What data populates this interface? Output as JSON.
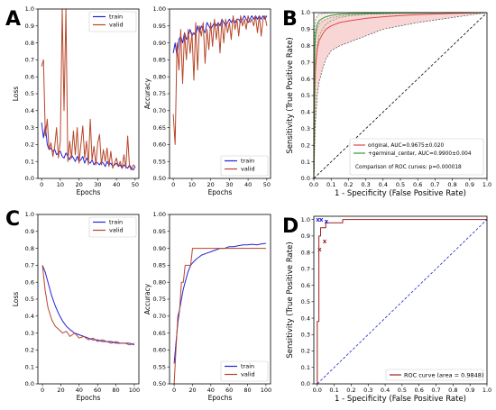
{
  "colors": {
    "train": "#2424d8",
    "valid": "#b8462a",
    "original": "#e04646",
    "germinal": "#2e9a2e",
    "band": "#f7c8c8",
    "diag": "#000000",
    "roc": "#9a2020",
    "diag_blue": "#2222cc"
  },
  "chart_data": [
    {
      "id": "A-loss",
      "panel": "A",
      "type": "line",
      "xlabel": "Epochs",
      "ylabel": "Loss",
      "xlim": [
        -2,
        52
      ],
      "ylim": [
        0,
        1.0
      ],
      "xticks": [
        0,
        10,
        20,
        30,
        40,
        50
      ],
      "yticks": [
        0.0,
        0.1,
        0.2,
        0.3,
        0.4,
        0.5,
        0.6,
        0.7,
        0.8,
        0.9,
        1.0
      ],
      "legend": "top-right",
      "series": [
        {
          "name": "train",
          "color": "train",
          "x": [
            0,
            1,
            2,
            3,
            4,
            5,
            6,
            7,
            8,
            9,
            10,
            11,
            12,
            13,
            14,
            15,
            16,
            17,
            18,
            19,
            20,
            21,
            22,
            23,
            24,
            25,
            26,
            27,
            28,
            29,
            30,
            31,
            32,
            33,
            34,
            35,
            36,
            37,
            38,
            39,
            40,
            41,
            42,
            43,
            44,
            45,
            46,
            47,
            48,
            49,
            50
          ],
          "y": [
            0.33,
            0.24,
            0.31,
            0.2,
            0.17,
            0.18,
            0.16,
            0.17,
            0.14,
            0.15,
            0.16,
            0.13,
            0.12,
            0.15,
            0.13,
            0.11,
            0.14,
            0.12,
            0.1,
            0.13,
            0.1,
            0.11,
            0.13,
            0.09,
            0.12,
            0.1,
            0.09,
            0.11,
            0.08,
            0.1,
            0.09,
            0.08,
            0.1,
            0.09,
            0.07,
            0.1,
            0.08,
            0.09,
            0.07,
            0.08,
            0.09,
            0.07,
            0.08,
            0.06,
            0.08,
            0.07,
            0.06,
            0.08,
            0.06,
            0.05,
            0.07
          ]
        },
        {
          "name": "valid",
          "color": "valid",
          "x": [
            0,
            1,
            2,
            3,
            4,
            5,
            6,
            7,
            8,
            9,
            10,
            11,
            12,
            13,
            14,
            15,
            16,
            17,
            18,
            19,
            20,
            21,
            22,
            23,
            24,
            25,
            26,
            27,
            28,
            29,
            30,
            31,
            32,
            33,
            34,
            35,
            36,
            37,
            38,
            39,
            40,
            41,
            42,
            43,
            44,
            45,
            46,
            47,
            48,
            49,
            50
          ],
          "y": [
            0.66,
            0.7,
            0.25,
            0.35,
            0.17,
            0.21,
            0.13,
            0.19,
            0.3,
            0.12,
            0.22,
            1.0,
            0.4,
            1.0,
            0.1,
            0.22,
            0.12,
            0.28,
            0.14,
            0.3,
            0.09,
            0.2,
            0.31,
            0.12,
            0.22,
            0.08,
            0.35,
            0.11,
            0.19,
            0.08,
            0.21,
            0.26,
            0.08,
            0.17,
            0.1,
            0.18,
            0.07,
            0.16,
            0.06,
            0.09,
            0.12,
            0.07,
            0.1,
            0.06,
            0.14,
            0.06,
            0.25,
            0.07,
            0.05,
            0.08,
            0.07
          ]
        }
      ]
    },
    {
      "id": "A-acc",
      "panel": "A",
      "type": "line",
      "xlabel": "Epochs",
      "ylabel": "Accuracy",
      "xlim": [
        -2,
        52
      ],
      "ylim": [
        0.5,
        1.0
      ],
      "xticks": [
        0,
        10,
        20,
        30,
        40,
        50
      ],
      "yticks": [
        0.5,
        0.55,
        0.6,
        0.65,
        0.7,
        0.75,
        0.8,
        0.85,
        0.9,
        0.95,
        1.0
      ],
      "legend": "bottom-right",
      "series": [
        {
          "name": "train",
          "color": "train",
          "x": [
            0,
            1,
            2,
            3,
            4,
            5,
            6,
            7,
            8,
            9,
            10,
            11,
            12,
            13,
            14,
            15,
            16,
            17,
            18,
            19,
            20,
            21,
            22,
            23,
            24,
            25,
            26,
            27,
            28,
            29,
            30,
            31,
            32,
            33,
            34,
            35,
            36,
            37,
            38,
            39,
            40,
            41,
            42,
            43,
            44,
            45,
            46,
            47,
            48,
            49,
            50
          ],
          "y": [
            0.87,
            0.9,
            0.86,
            0.91,
            0.92,
            0.9,
            0.93,
            0.91,
            0.92,
            0.94,
            0.92,
            0.93,
            0.92,
            0.95,
            0.93,
            0.95,
            0.94,
            0.93,
            0.96,
            0.95,
            0.94,
            0.95,
            0.96,
            0.95,
            0.96,
            0.95,
            0.97,
            0.96,
            0.95,
            0.96,
            0.97,
            0.96,
            0.97,
            0.96,
            0.97,
            0.97,
            0.96,
            0.97,
            0.98,
            0.97,
            0.96,
            0.97,
            0.98,
            0.97,
            0.98,
            0.97,
            0.98,
            0.97,
            0.98,
            0.97,
            0.98
          ]
        },
        {
          "name": "valid",
          "color": "valid",
          "x": [
            0,
            1,
            2,
            3,
            4,
            5,
            6,
            7,
            8,
            9,
            10,
            11,
            12,
            13,
            14,
            15,
            16,
            17,
            18,
            19,
            20,
            21,
            22,
            23,
            24,
            25,
            26,
            27,
            28,
            29,
            30,
            31,
            32,
            33,
            34,
            35,
            36,
            37,
            38,
            39,
            40,
            41,
            42,
            43,
            44,
            45,
            46,
            47,
            48,
            49,
            50
          ],
          "y": [
            0.69,
            0.6,
            0.9,
            0.82,
            0.94,
            0.78,
            0.93,
            0.85,
            0.94,
            0.87,
            0.93,
            0.79,
            0.96,
            0.82,
            0.95,
            0.92,
            0.96,
            0.84,
            0.94,
            0.88,
            0.96,
            0.89,
            0.97,
            0.91,
            0.96,
            0.87,
            0.97,
            0.9,
            0.97,
            0.93,
            0.96,
            0.91,
            0.98,
            0.94,
            0.97,
            0.92,
            0.98,
            0.95,
            0.97,
            0.94,
            0.98,
            0.96,
            0.97,
            0.95,
            0.98,
            0.93,
            0.98,
            0.92,
            0.97,
            0.98,
            0.95
          ]
        }
      ]
    },
    {
      "id": "B-roc",
      "panel": "B",
      "type": "line",
      "xlabel": "1 - Specificity (False Positive Rate)",
      "ylabel": "Sensitivity (True Positive Rate)",
      "xlim": [
        0,
        1.0
      ],
      "ylim": [
        0,
        1.0
      ],
      "xticks": [
        0.0,
        0.1,
        0.2,
        0.3,
        0.4,
        0.5,
        0.6,
        0.7,
        0.8,
        0.9,
        1.0
      ],
      "yticks": [
        0.0,
        0.1,
        0.2,
        0.3,
        0.4,
        0.5,
        0.6,
        0.7,
        0.8,
        0.9,
        1.0
      ],
      "legend": "bottom-right",
      "legend_entries": [
        "original, AUC=0.9675±0.020",
        "+germinal_center, AUC=0.9900±0.004"
      ],
      "note": "Comparison of ROC curves: p=0.000018",
      "series": [
        {
          "name": "original, AUC=0.9675±0.020",
          "color": "original",
          "x": [
            0,
            0.005,
            0.01,
            0.02,
            0.03,
            0.05,
            0.07,
            0.1,
            0.15,
            0.2,
            0.3,
            0.4,
            0.5,
            0.6,
            0.8,
            1.0
          ],
          "y": [
            0,
            0.55,
            0.68,
            0.78,
            0.83,
            0.87,
            0.9,
            0.92,
            0.94,
            0.95,
            0.965,
            0.975,
            0.982,
            0.988,
            0.995,
            1.0
          ],
          "band_low": [
            0,
            0.2,
            0.35,
            0.5,
            0.58,
            0.66,
            0.72,
            0.77,
            0.8,
            0.82,
            0.86,
            0.9,
            0.92,
            0.94,
            0.97,
            1.0
          ],
          "band_high": [
            0,
            0.75,
            0.85,
            0.9,
            0.93,
            0.95,
            0.96,
            0.97,
            0.98,
            0.985,
            0.99,
            0.995,
            0.997,
            0.999,
            1.0,
            1.0
          ]
        },
        {
          "name": "+germinal_center, AUC=0.9900±0.004",
          "color": "germinal",
          "x": [
            0,
            0.003,
            0.006,
            0.01,
            0.02,
            0.03,
            0.05,
            0.07,
            0.1,
            0.15,
            0.2,
            0.3,
            0.5,
            0.8,
            1.0
          ],
          "y": [
            0,
            0.6,
            0.8,
            0.88,
            0.93,
            0.95,
            0.965,
            0.975,
            0.983,
            0.99,
            0.993,
            0.996,
            0.998,
            1.0,
            1.0
          ],
          "band_low": [
            0,
            0.05,
            0.4,
            0.65,
            0.8,
            0.86,
            0.9,
            0.93,
            0.95,
            0.97,
            0.98,
            0.99,
            0.995,
            1.0,
            1.0
          ],
          "band_high": [
            0,
            0.85,
            0.93,
            0.96,
            0.98,
            0.99,
            0.995,
            0.997,
            0.999,
            1.0,
            1.0,
            1.0,
            1.0,
            1.0,
            1.0
          ]
        },
        {
          "name": "diagonal",
          "color": "diag",
          "x": [
            0,
            1
          ],
          "y": [
            0,
            1
          ]
        }
      ]
    },
    {
      "id": "C-loss",
      "panel": "C",
      "type": "line",
      "xlabel": "Epochs",
      "ylabel": "Loss",
      "xlim": [
        -5,
        105
      ],
      "ylim": [
        0,
        1.0
      ],
      "xticks": [
        0,
        20,
        40,
        60,
        80,
        100
      ],
      "yticks": [
        0.0,
        0.1,
        0.2,
        0.3,
        0.4,
        0.5,
        0.6,
        0.7,
        0.8,
        0.9,
        1.0
      ],
      "legend": "top-right",
      "series": [
        {
          "name": "train",
          "color": "train",
          "x": [
            0,
            3,
            6,
            10,
            14,
            18,
            22,
            26,
            30,
            35,
            40,
            45,
            50,
            55,
            60,
            65,
            70,
            75,
            80,
            85,
            90,
            95,
            100
          ],
          "y": [
            0.7,
            0.66,
            0.6,
            0.52,
            0.46,
            0.41,
            0.37,
            0.34,
            0.32,
            0.3,
            0.29,
            0.28,
            0.27,
            0.26,
            0.26,
            0.25,
            0.25,
            0.25,
            0.24,
            0.24,
            0.24,
            0.24,
            0.23
          ]
        },
        {
          "name": "valid",
          "color": "valid",
          "x": [
            0,
            3,
            6,
            10,
            14,
            18,
            22,
            26,
            30,
            35,
            40,
            45,
            50,
            55,
            60,
            65,
            70,
            75,
            80,
            85,
            90,
            95,
            100
          ],
          "y": [
            0.7,
            0.55,
            0.45,
            0.38,
            0.34,
            0.32,
            0.3,
            0.31,
            0.28,
            0.3,
            0.27,
            0.28,
            0.26,
            0.27,
            0.25,
            0.26,
            0.25,
            0.24,
            0.25,
            0.24,
            0.24,
            0.23,
            0.24
          ]
        }
      ]
    },
    {
      "id": "C-acc",
      "panel": "C",
      "type": "line",
      "xlabel": "Epochs",
      "ylabel": "Accuracy",
      "xlim": [
        -5,
        105
      ],
      "ylim": [
        0.5,
        1.0
      ],
      "xticks": [
        0,
        20,
        40,
        60,
        80,
        100
      ],
      "yticks": [
        0.5,
        0.55,
        0.6,
        0.65,
        0.7,
        0.75,
        0.8,
        0.85,
        0.9,
        0.95,
        1.0
      ],
      "legend": "bottom-right",
      "series": [
        {
          "name": "train",
          "color": "train",
          "x": [
            0,
            2,
            4,
            6,
            8,
            10,
            12,
            15,
            18,
            21,
            25,
            30,
            35,
            40,
            45,
            50,
            55,
            60,
            65,
            70,
            75,
            80,
            85,
            90,
            95,
            100
          ],
          "y": [
            0.56,
            0.62,
            0.68,
            0.72,
            0.75,
            0.78,
            0.8,
            0.83,
            0.85,
            0.86,
            0.87,
            0.88,
            0.885,
            0.89,
            0.895,
            0.9,
            0.9,
            0.905,
            0.905,
            0.908,
            0.91,
            0.91,
            0.912,
            0.91,
            0.913,
            0.915
          ]
        },
        {
          "name": "valid",
          "color": "valid",
          "x": [
            0,
            2,
            4,
            6,
            8,
            10,
            12,
            14,
            16,
            18,
            20,
            24,
            100
          ],
          "y": [
            0.5,
            0.6,
            0.7,
            0.72,
            0.8,
            0.8,
            0.85,
            0.85,
            0.85,
            0.85,
            0.9,
            0.9,
            0.9
          ]
        }
      ]
    },
    {
      "id": "D-roc",
      "panel": "D",
      "type": "line",
      "xlabel": "1 - Specificity (False Positive Rate)",
      "ylabel": "Sensitivity (True Positive Rate)",
      "xlim": [
        -0.02,
        1.0
      ],
      "ylim": [
        0,
        1.02
      ],
      "xticks": [
        0.0,
        0.1,
        0.2,
        0.3,
        0.4,
        0.5,
        0.6,
        0.7,
        0.8,
        0.9,
        1.0
      ],
      "yticks": [
        0.0,
        0.1,
        0.2,
        0.3,
        0.4,
        0.5,
        0.6,
        0.7,
        0.8,
        0.9,
        1.0
      ],
      "legend": "bottom-right",
      "legend_entries": [
        "ROC curve (area = 0.9848)"
      ],
      "series": [
        {
          "name": "ROC curve (area = 0.9848)",
          "color": "roc",
          "x": [
            0,
            0,
            0.01,
            0.01,
            0.02,
            0.02,
            0.05,
            0.05,
            0.15,
            0.15,
            1.0
          ],
          "y": [
            0,
            0.38,
            0.38,
            0.9,
            0.9,
            0.95,
            0.95,
            0.98,
            0.98,
            1.0,
            1.0
          ]
        },
        {
          "name": "diagonal",
          "color": "diag_blue",
          "x": [
            0,
            1
          ],
          "y": [
            0,
            1
          ]
        }
      ],
      "markers": [
        {
          "text": "x",
          "color": "roc",
          "x": 0.01,
          "y": 0.82
        },
        {
          "text": "x",
          "color": "roc",
          "x": 0.04,
          "y": 0.87
        },
        {
          "text": "x",
          "color": "diag_blue",
          "x": 0.0,
          "y": 1.0
        },
        {
          "text": "x",
          "color": "diag_blue",
          "x": 0.02,
          "y": 1.0
        },
        {
          "text": "x",
          "color": "diag_blue",
          "x": 0.05,
          "y": 0.99
        }
      ]
    }
  ]
}
